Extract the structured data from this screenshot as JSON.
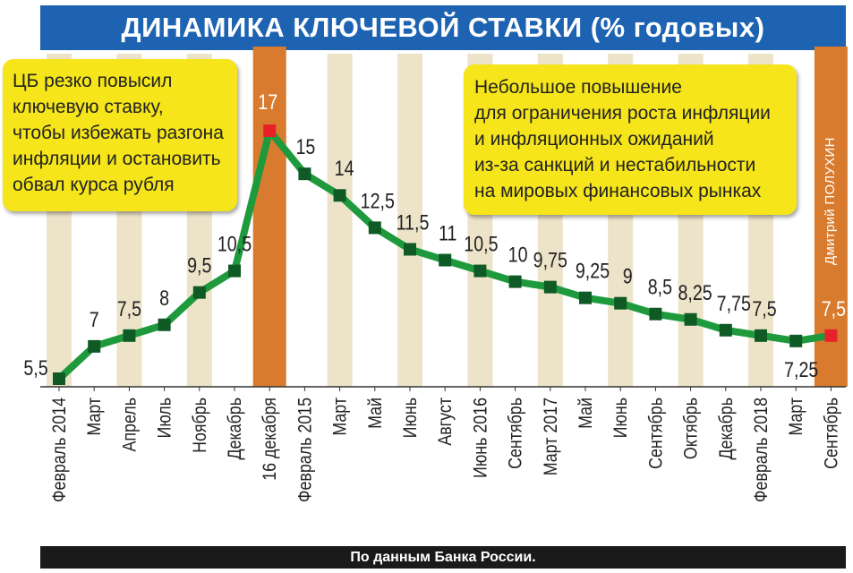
{
  "header": {
    "title": "ДИНАМИКА КЛЮЧЕВОЙ СТАВКИ (% годовых)"
  },
  "callouts": {
    "left": {
      "lines": [
        "ЦБ резко повысил",
        "ключевую ставку,",
        "чтобы избежать разгона",
        "инфляции и остановить",
        "обвал курса рубля"
      ]
    },
    "right": {
      "lines": [
        "Небольшое повышение",
        "для ограничения роста инфляции",
        "и инфляционных ожиданий",
        "из-за санкций и нестабильности",
        "на мировых финансовых рынках"
      ]
    }
  },
  "credit": "Дмитрий ПОЛУХИН",
  "footer": {
    "source": "По данным Банка России."
  },
  "colors": {
    "title_bg": "#1d63b2",
    "stripe": "#ede3c9",
    "highlight": "#d97b2e",
    "line": "#1e9a3c",
    "marker": "#0f5a25",
    "highlight_marker": "#e8202a",
    "callout": "#f5e51a",
    "footer_bg": "#1a1a1a"
  },
  "chart_data": {
    "type": "line",
    "categories": [
      "Февраль 2014",
      "Март",
      "Апрель",
      "Июль",
      "Ноябрь",
      "Декабрь",
      "16 декабря",
      "Февраль 2015",
      "Март",
      "Май",
      "Июнь",
      "Август",
      "Июнь 2016",
      "Сентябрь",
      "Март 2017",
      "Май",
      "Июнь",
      "Сентябрь",
      "Октябрь",
      "Декабрь",
      "Февраль 2018",
      "Март",
      "Сентябрь"
    ],
    "values": [
      5.5,
      7,
      7.5,
      8,
      9.5,
      10.5,
      17,
      15,
      14,
      12.5,
      11.5,
      11,
      10.5,
      10,
      9.75,
      9.25,
      9,
      8.5,
      8.25,
      7.75,
      7.5,
      7.25,
      7.5
    ],
    "labels": [
      "5,5",
      "7",
      "7,5",
      "8",
      "9,5",
      "10,5",
      "17",
      "15",
      "14",
      "12,5",
      "11,5",
      "11",
      "10,5",
      "10",
      "9,75",
      "9,25",
      "9",
      "8,5",
      "8,25",
      "7,75",
      "7,5",
      "7,25",
      "7,5"
    ],
    "highlighted_points": [
      "16 декабря",
      "Сентябрь"
    ],
    "ylim": [
      5,
      17.5
    ],
    "grid": false,
    "alternating_column_stripes": true
  }
}
